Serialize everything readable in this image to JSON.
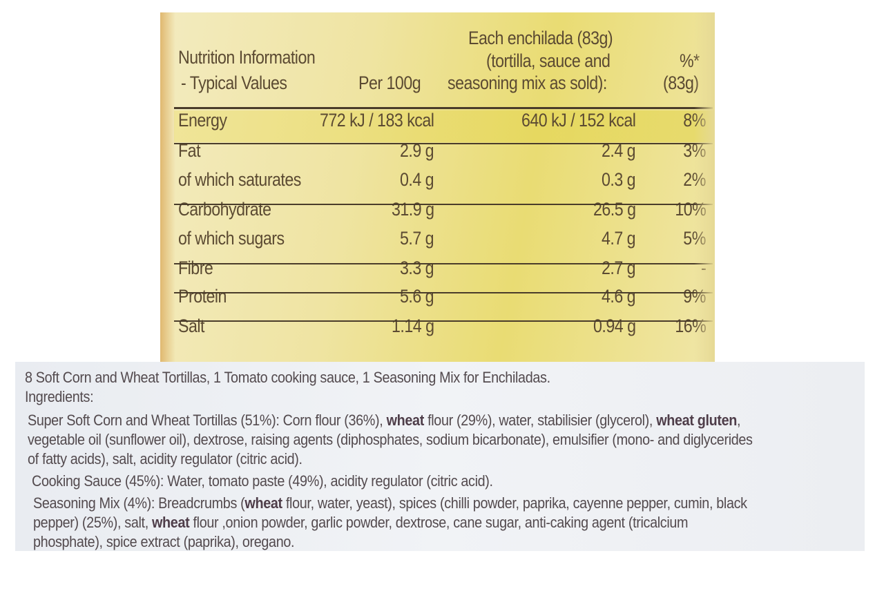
{
  "nutrition": {
    "header": {
      "title_line1": "Nutrition Information",
      "title_line2": "- Typical Values",
      "per100g": "Per 100g",
      "each_line1": "Each enchilada (83g)",
      "each_line2": "(tortilla, sauce and",
      "each_line3": "seasoning mix as sold):",
      "pct_line1": "%*",
      "pct_line2": "(83g)"
    },
    "rows": [
      {
        "label": "Energy",
        "per100g": "772 kJ / 183 kcal",
        "each": "640 kJ / 152 kcal",
        "pct": "8%"
      },
      {
        "label": "Fat",
        "per100g": "2.9 g",
        "each": "2.4 g",
        "pct": "3%"
      },
      {
        "label": "of which saturates",
        "per100g": "0.4 g",
        "each": "0.3 g",
        "pct": "2%"
      },
      {
        "label": "Carbohydrate",
        "per100g": "31.9 g",
        "each": "26.5 g",
        "pct": "10%"
      },
      {
        "label": "of which sugars",
        "per100g": "5.7 g",
        "each": "4.7 g",
        "pct": "5%"
      },
      {
        "label": "Fibre",
        "per100g": "3.3 g",
        "each": "2.7 g",
        "pct": "-"
      },
      {
        "label": "Protein",
        "per100g": "5.6 g",
        "each": "4.6 g",
        "pct": "9%"
      },
      {
        "label": "Salt",
        "per100g": "1.14 g",
        "each": "0.94 g",
        "pct": "16%"
      }
    ]
  },
  "ingredients": {
    "contents": "8 Soft Corn and Wheat Tortillas, 1 Tomato cooking sauce, 1 Seasoning Mix for Enchiladas.",
    "heading": "Ingredients:",
    "l1a": "Super Soft Corn and Wheat Tortillas (51%): Corn flour (36%), ",
    "l1b": "wheat",
    "l1c": " flour (29%), water, stabilisier (glycerol), ",
    "l1d": "wheat gluten",
    "l1e": ",",
    "l2": "vegetable oil (sunflower oil), dextrose, raising agents (diphosphates, sodium bicarbonate), emulsifier (mono- and diglycerides",
    "l3": "of fatty acids), salt, acidity regulator (citric acid).",
    "l4": "Cooking Sauce (45%): Water, tomato paste (49%), acidity regulator (citric acid).",
    "l5a": "Seasoning Mix (4%): Breadcrumbs (",
    "l5b": "wheat",
    "l5c": " flour, water, yeast), spices (chilli powder, paprika, cayenne pepper, cumin, black",
    "l6a": "pepper) (25%), salt, ",
    "l6b": "wheat",
    "l6c": " flour ,onion powder, garlic powder, dextrose, cane sugar, anti-caking agent (tricalcium",
    "l7": "phosphate), spice extract (paprika), oregano."
  }
}
